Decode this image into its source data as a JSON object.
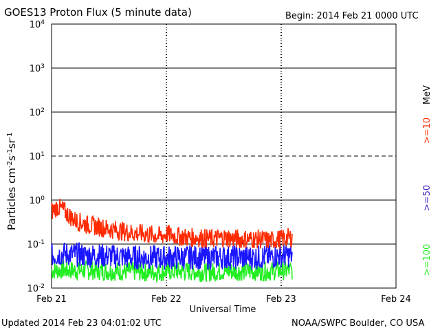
{
  "colors": {
    "background": "#ffffff",
    "axis": "#000000",
    "gte10": "#ff2a00",
    "gte50": "#1a16ff",
    "gte100": "#22ee22"
  },
  "header": {
    "title": "GOES13 Proton Flux (5 minute data)",
    "begin": "Begin: 2014 Feb 21 0000 UTC"
  },
  "footer": {
    "updated": "Updated 2014 Feb 23 04:01:02 UTC",
    "credit": "NOAA/SWPC Boulder, CO USA"
  },
  "chart_data": {
    "type": "line",
    "title": "GOES13 Proton Flux (5 minute data)",
    "xlabel": "Universal Time",
    "ylabel": "Particles cm-2s-1sr-1",
    "ylabel_parts": [
      "Particles cm",
      "-2",
      "s",
      "-1",
      "sr",
      "-1"
    ],
    "yscale": "log",
    "ylim": [
      0.01,
      10000
    ],
    "xlim_days": [
      0,
      3
    ],
    "x_tick_labels": [
      "Feb 21",
      "Feb 22",
      "Feb 23",
      "Feb 24"
    ],
    "y_tick_labels": [
      {
        "base": "10",
        "exp": "-2"
      },
      {
        "base": "10",
        "exp": "-1"
      },
      {
        "base": "10",
        "exp": "0"
      },
      {
        "base": "10",
        "exp": "1"
      },
      {
        "base": "10",
        "exp": "2"
      },
      {
        "base": "10",
        "exp": "3"
      },
      {
        "base": "10",
        "exp": "4"
      }
    ],
    "threshold_line": {
      "value": 10,
      "style": "dashed"
    },
    "energy_unit": "MeV",
    "series": [
      {
        "name": ">=10",
        "label": ">=10",
        "x_days": [
          0.0,
          0.05,
          0.1,
          0.15,
          0.2,
          0.3,
          0.4,
          0.5,
          0.6,
          0.7,
          0.8,
          0.9,
          0.95,
          1.0,
          1.05,
          1.1,
          1.2,
          1.3,
          1.4,
          1.5,
          1.6,
          1.7,
          1.8,
          1.9,
          2.0,
          2.05,
          2.1
        ],
        "values": [
          0.55,
          0.7,
          0.6,
          0.45,
          0.35,
          0.28,
          0.25,
          0.22,
          0.2,
          0.18,
          0.17,
          0.16,
          0.15,
          0.17,
          0.16,
          0.15,
          0.14,
          0.14,
          0.13,
          0.14,
          0.13,
          0.13,
          0.13,
          0.12,
          0.13,
          0.14,
          0.14
        ]
      },
      {
        "name": ">=50",
        "label": ">=50",
        "x_days": [
          0.0,
          0.1,
          0.2,
          0.3,
          0.4,
          0.5,
          0.6,
          0.7,
          0.8,
          0.9,
          0.95,
          1.0,
          1.1,
          1.2,
          1.3,
          1.4,
          1.5,
          1.6,
          1.7,
          1.8,
          1.9,
          2.0,
          2.1
        ],
        "values": [
          0.055,
          0.06,
          0.058,
          0.055,
          0.055,
          0.053,
          0.052,
          0.05,
          0.05,
          0.05,
          0.048,
          0.05,
          0.05,
          0.05,
          0.05,
          0.049,
          0.05,
          0.05,
          0.05,
          0.05,
          0.052,
          0.055,
          0.055
        ]
      },
      {
        "name": ">=100",
        "label": ">=100",
        "x_days": [
          0.0,
          0.1,
          0.2,
          0.3,
          0.4,
          0.5,
          0.6,
          0.7,
          0.8,
          0.9,
          0.95,
          1.0,
          1.1,
          1.2,
          1.3,
          1.4,
          1.5,
          1.6,
          1.7,
          1.8,
          1.9,
          2.0,
          2.1
        ],
        "values": [
          0.025,
          0.026,
          0.025,
          0.025,
          0.025,
          0.024,
          0.024,
          0.024,
          0.023,
          0.023,
          0.023,
          0.024,
          0.024,
          0.024,
          0.023,
          0.023,
          0.024,
          0.024,
          0.024,
          0.024,
          0.024,
          0.025,
          0.025
        ]
      }
    ]
  }
}
